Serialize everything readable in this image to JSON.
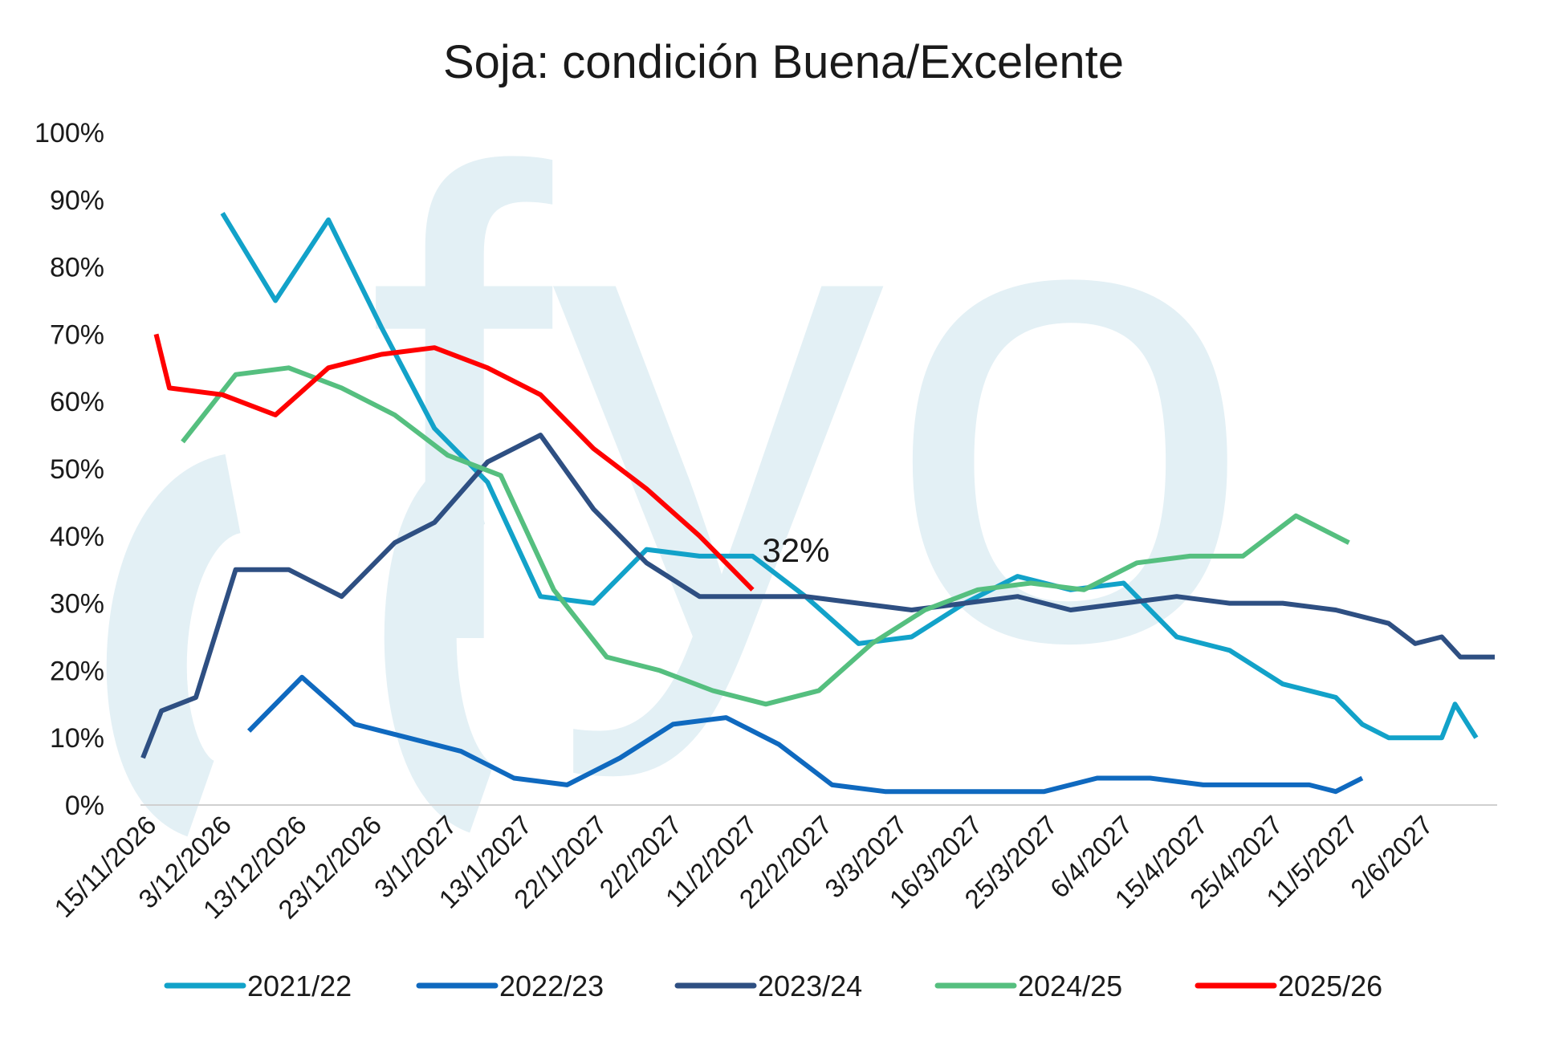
{
  "chart_data": {
    "type": "line",
    "title": "Soja: condición Buena/Excelente",
    "ylim": [
      0,
      100
    ],
    "y_ticks": [
      "0%",
      "10%",
      "20%",
      "30%",
      "40%",
      "50%",
      "60%",
      "70%",
      "80%",
      "90%",
      "100%"
    ],
    "x_tick_labels": [
      "15/11/2026",
      "3/12/2026",
      "13/12/2026",
      "23/12/2026",
      "3/1/2027",
      "13/1/2027",
      "22/1/2027",
      "2/2/2027",
      "11/2/2027",
      "22/2/2027",
      "3/3/2027",
      "16/3/2027",
      "25/3/2027",
      "6/4/2027",
      "15/4/2027",
      "25/4/2027",
      "11/5/2027",
      "2/6/2027"
    ],
    "grid": false,
    "legend_position": "bottom",
    "annotation": {
      "text": "32%",
      "series": "2025/26",
      "point_index": 23
    },
    "watermark": "fyo",
    "series": [
      {
        "name": "2021/22",
        "color": "#12a2c9",
        "points": [
          [
            3,
            88
          ],
          [
            5,
            75
          ],
          [
            7,
            87
          ],
          [
            9,
            71
          ],
          [
            11,
            56
          ],
          [
            13,
            48
          ],
          [
            15,
            31
          ],
          [
            17,
            30
          ],
          [
            19,
            38
          ],
          [
            21,
            37
          ],
          [
            23,
            37
          ],
          [
            25,
            31
          ],
          [
            27,
            24
          ],
          [
            29,
            25
          ],
          [
            31,
            30
          ],
          [
            33,
            34
          ],
          [
            35,
            32
          ],
          [
            37,
            33
          ],
          [
            39,
            25
          ],
          [
            41,
            23
          ],
          [
            43,
            18
          ],
          [
            45,
            16
          ],
          [
            46,
            12
          ],
          [
            47,
            10
          ],
          [
            49,
            10
          ],
          [
            49.5,
            15
          ],
          [
            50.3,
            10
          ]
        ]
      },
      {
        "name": "2022/23",
        "color": "#0f69bf",
        "points": [
          [
            4,
            11
          ],
          [
            6,
            19
          ],
          [
            8,
            12
          ],
          [
            10,
            10
          ],
          [
            12,
            8
          ],
          [
            14,
            4
          ],
          [
            16,
            3
          ],
          [
            18,
            7
          ],
          [
            20,
            12
          ],
          [
            22,
            13
          ],
          [
            24,
            9
          ],
          [
            26,
            3
          ],
          [
            28,
            2
          ],
          [
            30,
            2
          ],
          [
            32,
            2
          ],
          [
            34,
            2
          ],
          [
            36,
            4
          ],
          [
            38,
            4
          ],
          [
            40,
            3
          ],
          [
            42,
            3
          ],
          [
            44,
            3
          ],
          [
            45,
            2
          ],
          [
            46,
            4
          ]
        ]
      },
      {
        "name": "2023/24",
        "color": "#2e4f82",
        "points": [
          [
            0,
            7
          ],
          [
            0.7,
            14
          ],
          [
            2,
            16
          ],
          [
            3.5,
            35
          ],
          [
            5.5,
            35
          ],
          [
            7.5,
            31
          ],
          [
            9.5,
            39
          ],
          [
            11,
            42
          ],
          [
            13,
            51
          ],
          [
            15,
            55
          ],
          [
            17,
            44
          ],
          [
            19,
            36
          ],
          [
            21,
            31
          ],
          [
            23,
            31
          ],
          [
            25,
            31
          ],
          [
            27,
            30
          ],
          [
            29,
            29
          ],
          [
            31,
            30
          ],
          [
            33,
            31
          ],
          [
            35,
            29
          ],
          [
            37,
            30
          ],
          [
            39,
            31
          ],
          [
            41,
            30
          ],
          [
            43,
            30
          ],
          [
            45,
            29
          ],
          [
            47,
            27
          ],
          [
            48,
            24
          ],
          [
            49,
            25
          ],
          [
            49.7,
            22
          ],
          [
            51,
            22
          ]
        ]
      },
      {
        "name": "2024/25",
        "color": "#55bf7f",
        "points": [
          [
            1.5,
            54
          ],
          [
            3.5,
            64
          ],
          [
            5.5,
            65
          ],
          [
            7.5,
            62
          ],
          [
            9.5,
            58
          ],
          [
            11.5,
            52
          ],
          [
            13.5,
            49
          ],
          [
            15.5,
            32
          ],
          [
            17.5,
            22
          ],
          [
            19.5,
            20
          ],
          [
            21.5,
            17
          ],
          [
            23.5,
            15
          ],
          [
            25.5,
            17
          ],
          [
            27.5,
            24
          ],
          [
            29.5,
            29
          ],
          [
            31.5,
            32
          ],
          [
            33.5,
            33
          ],
          [
            35.5,
            32
          ],
          [
            37.5,
            36
          ],
          [
            39.5,
            37
          ],
          [
            41.5,
            37
          ],
          [
            43.5,
            43
          ],
          [
            45.5,
            39
          ]
        ]
      },
      {
        "name": "2025/26",
        "color": "#ff0000",
        "points": [
          [
            0.5,
            70
          ],
          [
            1,
            62
          ],
          [
            3,
            61
          ],
          [
            5,
            58
          ],
          [
            7,
            65
          ],
          [
            9,
            67
          ],
          [
            11,
            68
          ],
          [
            13,
            65
          ],
          [
            15,
            61
          ],
          [
            17,
            53
          ],
          [
            19,
            47
          ],
          [
            21,
            40
          ],
          [
            23,
            32
          ]
        ]
      }
    ]
  }
}
